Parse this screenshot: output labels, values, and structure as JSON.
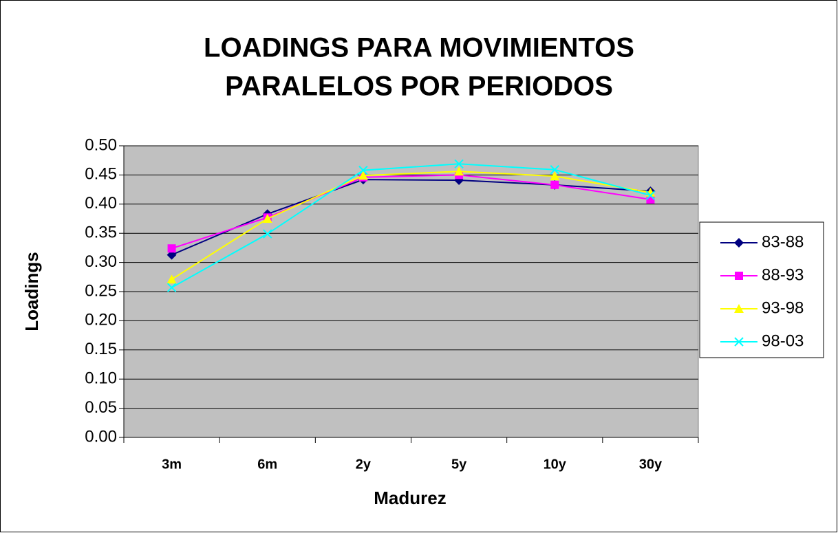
{
  "chart_data": {
    "type": "line",
    "title": [
      "LOADINGS PARA MOVIMIENTOS",
      "PARALELOS POR PERIODOS"
    ],
    "x_label": "Madurez",
    "y_label": "Loadings",
    "categories": [
      "3m",
      "6m",
      "2y",
      "5y",
      "10y",
      "30y"
    ],
    "series": [
      {
        "name": "83-88",
        "color": "#000080",
        "marker": "diamond",
        "values": [
          0.313,
          0.383,
          0.442,
          0.441,
          0.433,
          0.422
        ]
      },
      {
        "name": "88-93",
        "color": "#FF00FF",
        "marker": "square",
        "values": [
          0.324,
          0.377,
          0.446,
          0.45,
          0.433,
          0.408
        ]
      },
      {
        "name": "93-98",
        "color": "#FFFF00",
        "marker": "triangle",
        "values": [
          0.271,
          0.375,
          0.449,
          0.456,
          0.448,
          0.42
        ]
      },
      {
        "name": "98-03",
        "color": "#00FFFF",
        "marker": "x",
        "values": [
          0.257,
          0.349,
          0.458,
          0.469,
          0.459,
          0.415
        ]
      }
    ],
    "ylim": [
      0,
      0.5
    ],
    "yticks": [
      {
        "value": 0,
        "label": "0.00"
      },
      0.05,
      {
        "value": 0.1,
        "label": "0.10"
      },
      0.15,
      {
        "value": 0.2,
        "label": "0.20"
      },
      0.25,
      {
        "value": 0.3,
        "label": "0.30"
      },
      0.35,
      {
        "value": 0.4,
        "label": "0.40"
      },
      0.45,
      {
        "value": 0.5,
        "label": "0.50"
      }
    ],
    "grid": true,
    "legend": "right",
    "plot_background": "#C0C0C0"
  }
}
